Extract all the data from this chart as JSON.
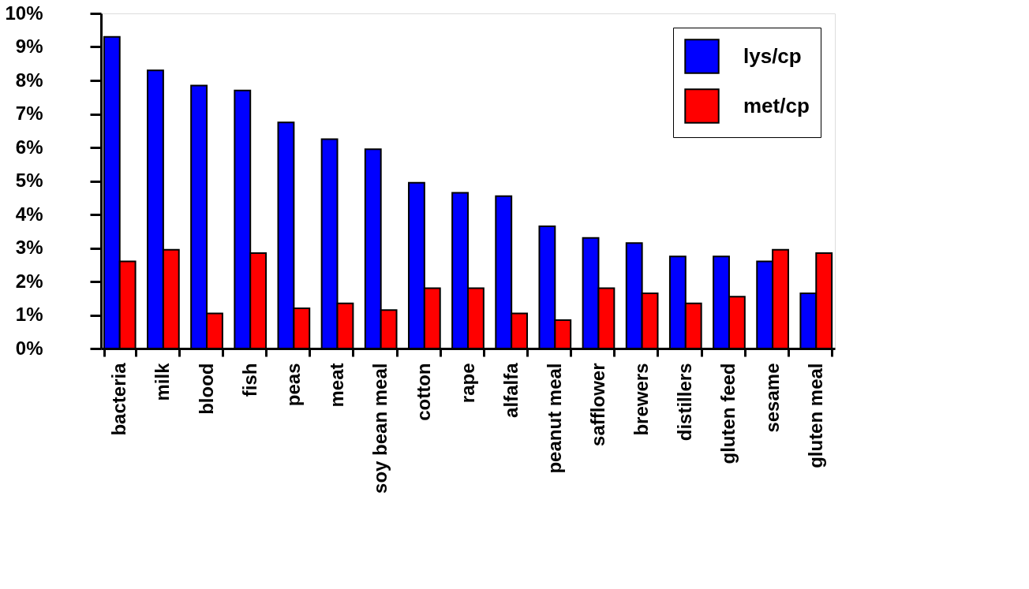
{
  "chart_data": {
    "type": "bar",
    "categories": [
      "bacteria",
      "milk",
      "blood",
      "fish",
      "peas",
      "meat",
      "soy bean meal",
      "cotton",
      "rape",
      "alfalfa",
      "peanut meal",
      "safflower",
      "brewers",
      "distillers",
      "gluten feed",
      "sesame",
      "gluten meal"
    ],
    "series": [
      {
        "name": "lys/cp",
        "color": "#0000ff",
        "values": [
          9.3,
          8.3,
          7.85,
          7.7,
          6.75,
          6.25,
          5.95,
          4.95,
          4.65,
          4.55,
          3.65,
          3.3,
          3.15,
          2.75,
          2.75,
          2.6,
          1.65
        ]
      },
      {
        "name": "met/cp",
        "color": "#ff0000",
        "values": [
          2.6,
          2.95,
          1.05,
          2.85,
          1.2,
          1.35,
          1.15,
          1.8,
          1.8,
          1.05,
          0.85,
          1.8,
          1.65,
          1.35,
          1.55,
          2.95,
          2.85
        ]
      }
    ],
    "ylim": [
      0,
      10
    ],
    "yticks": [
      {
        "value": 0,
        "label": "0%"
      },
      {
        "value": 1,
        "label": "1%"
      },
      {
        "value": 2,
        "label": "2%"
      },
      {
        "value": 3,
        "label": "3%"
      },
      {
        "value": 4,
        "label": "4%"
      },
      {
        "value": 5,
        "label": "5%"
      },
      {
        "value": 6,
        "label": "6%"
      },
      {
        "value": 7,
        "label": "7%"
      },
      {
        "value": 8,
        "label": "8%"
      },
      {
        "value": 9,
        "label": "9%"
      },
      {
        "value": 10,
        "label": "10%"
      }
    ],
    "grid": false,
    "legend": "top right"
  }
}
